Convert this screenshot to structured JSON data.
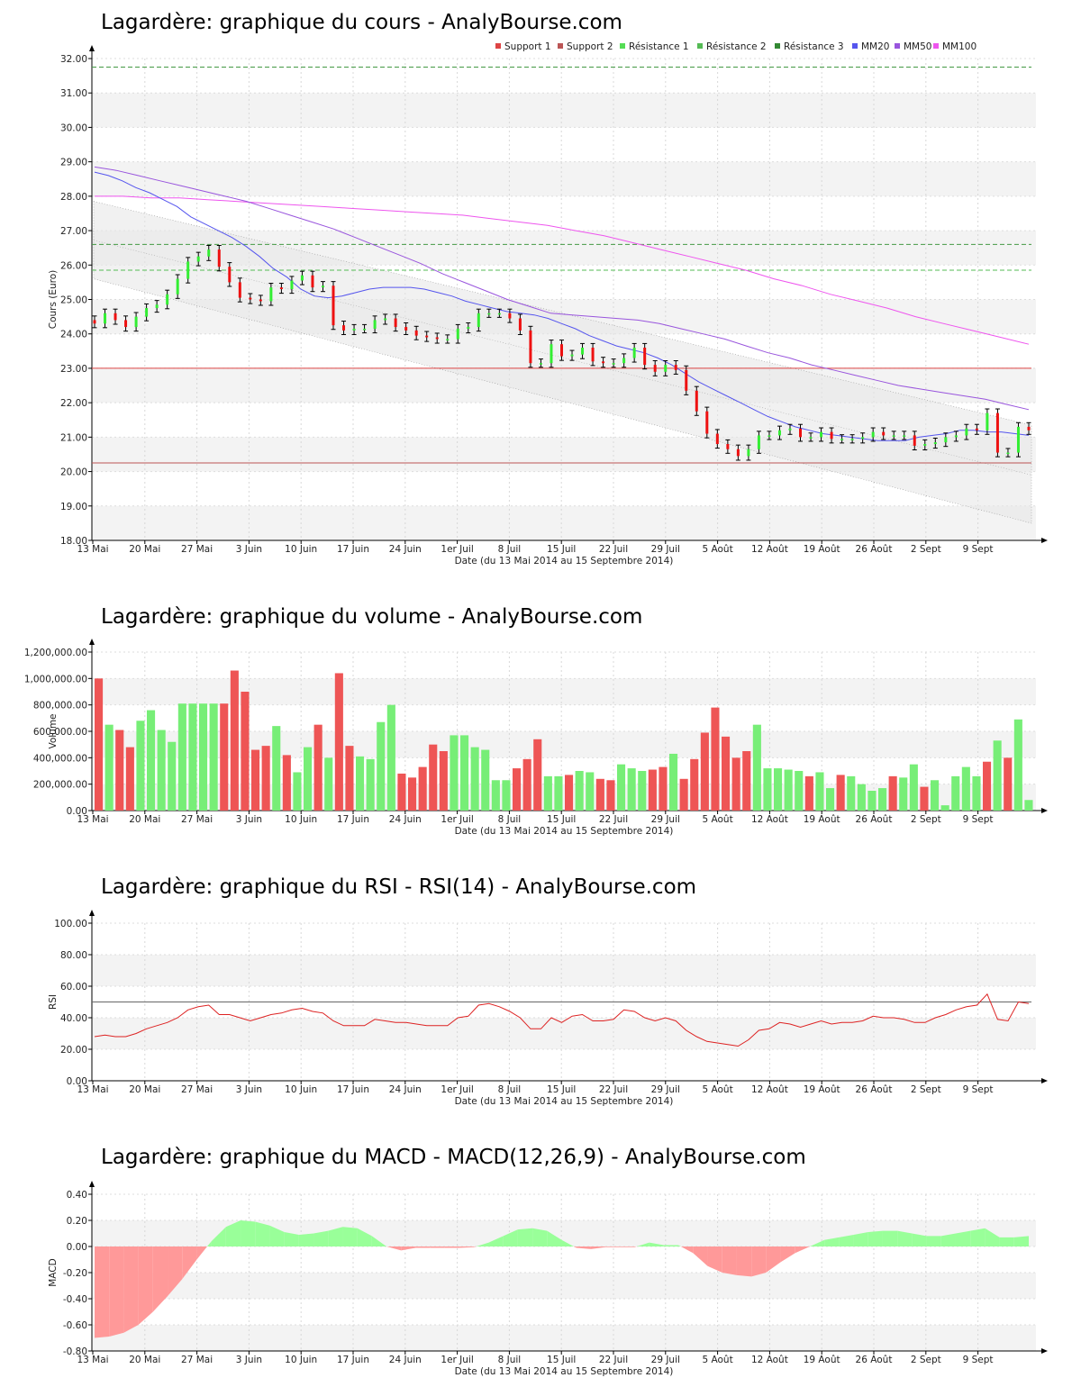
{
  "x_axis": {
    "ticks": [
      "13 Mai",
      "20 Mai",
      "27 Mai",
      "3 Juin",
      "10 Juin",
      "17 Juin",
      "24 Juin",
      "1er Juil",
      "8 Juil",
      "15 Juil",
      "22 Juil",
      "29 Juil",
      "5 Août",
      "12 Août",
      "19 Août",
      "26 Août",
      "2 Sept",
      "9 Sept"
    ],
    "label": "Date (du 13 Mai 2014 au 15 Septembre 2014)"
  },
  "colors": {
    "up": "#33ee33",
    "down": "#ee1111",
    "support": "#dd4444",
    "resistance": "#55bb55",
    "mm20": "#5555ee",
    "mm50": "#9955dd",
    "mm100": "#ee55ee",
    "vol_up": "#77ee77",
    "vol_down": "#ee5555",
    "rsi": "#dd2222",
    "macd_pos": "#99ff99",
    "macd_neg": "#ff9999"
  },
  "chart_data": [
    {
      "id": "price",
      "type": "candlestick",
      "title": "Lagardère: graphique du cours - AnalyBourse.com",
      "ylabel": "Cours (Euro)",
      "xlabel": "Date (du 13 Mai 2014 au 15 Septembre 2014)",
      "ylim": [
        18,
        32
      ],
      "yticks": [
        "18.00",
        "19.00",
        "20.00",
        "21.00",
        "22.00",
        "23.00",
        "24.00",
        "25.00",
        "26.00",
        "27.00",
        "28.00",
        "29.00",
        "30.00",
        "31.00",
        "32.00"
      ],
      "legend": [
        "Support 1",
        "Support 2",
        "Résistance 1",
        "Résistance 2",
        "Résistance 3",
        "MM20",
        "MM50",
        "MM100"
      ],
      "levels": {
        "support1": 23.0,
        "support2": 20.25,
        "resistance1": 25.85,
        "resistance2": 26.6,
        "resistance3": 31.75
      },
      "close": [
        24.3,
        24.6,
        24.4,
        24.2,
        24.5,
        24.75,
        24.85,
        25.15,
        25.6,
        26.1,
        26.25,
        26.45,
        25.95,
        25.5,
        25.05,
        25.0,
        24.95,
        25.35,
        25.3,
        25.55,
        25.7,
        25.35,
        25.4,
        24.25,
        24.1,
        24.15,
        24.15,
        24.4,
        24.45,
        24.2,
        24.1,
        23.95,
        23.9,
        23.85,
        23.85,
        24.15,
        24.2,
        24.6,
        24.6,
        24.6,
        24.45,
        24.1,
        23.15,
        23.15,
        23.7,
        23.35,
        23.4,
        23.6,
        23.2,
        23.15,
        23.15,
        23.3,
        23.6,
        23.1,
        22.9,
        23.1,
        22.95,
        22.35,
        21.75,
        21.1,
        20.8,
        20.65,
        20.45,
        20.65,
        21.05,
        21.05,
        21.2,
        21.25,
        21.0,
        21.0,
        21.15,
        20.95,
        20.95,
        20.95,
        21.0,
        21.15,
        21.05,
        21.05,
        21.05,
        20.75,
        20.8,
        20.85,
        21.0,
        21.05,
        21.25,
        21.2,
        21.7,
        20.55,
        20.55,
        21.3,
        21.2
      ],
      "mm20": [
        28.7,
        28.6,
        28.45,
        28.25,
        28.1,
        27.9,
        27.7,
        27.4,
        27.2,
        27.0,
        26.8,
        26.55,
        26.25,
        25.9,
        25.65,
        25.3,
        25.1,
        25.05,
        25.1,
        25.2,
        25.3,
        25.35,
        25.35,
        25.35,
        25.3,
        25.2,
        25.1,
        24.95,
        24.85,
        24.75,
        24.65,
        24.6,
        24.55,
        24.45,
        24.3,
        24.15,
        23.95,
        23.8,
        23.65,
        23.55,
        23.45,
        23.3,
        23.1,
        22.85,
        22.6,
        22.4,
        22.2,
        22.0,
        21.8,
        21.6,
        21.45,
        21.3,
        21.2,
        21.1,
        21.05,
        21.0,
        20.95,
        20.9,
        20.9,
        20.9,
        21.0,
        21.05,
        21.1,
        21.2,
        21.2,
        21.15,
        21.15,
        21.1,
        21.05
      ],
      "mm50": [
        28.85,
        28.75,
        28.6,
        28.45,
        28.3,
        28.15,
        28.0,
        27.85,
        27.65,
        27.45,
        27.25,
        27.05,
        26.8,
        26.55,
        26.3,
        26.05,
        25.75,
        25.5,
        25.25,
        25.0,
        24.8,
        24.6,
        24.55,
        24.5,
        24.45,
        24.4,
        24.3,
        24.15,
        24.0,
        23.85,
        23.65,
        23.45,
        23.3,
        23.1,
        22.95,
        22.8,
        22.65,
        22.5,
        22.4,
        22.3,
        22.2,
        22.1,
        21.95,
        21.8
      ],
      "mm100": [
        28.0,
        28.0,
        27.95,
        27.95,
        27.9,
        27.85,
        27.8,
        27.75,
        27.7,
        27.65,
        27.6,
        27.55,
        27.5,
        27.45,
        27.35,
        27.25,
        27.15,
        27.0,
        26.85,
        26.65,
        26.45,
        26.25,
        26.05,
        25.85,
        25.6,
        25.4,
        25.15,
        24.95,
        24.75,
        24.5,
        24.3,
        24.1,
        23.9,
        23.7
      ]
    },
    {
      "id": "volume",
      "type": "bar",
      "title": "Lagardère: graphique du volume - AnalyBourse.com",
      "ylabel": "Volume",
      "xlabel": "Date (du 13 Mai 2014 au 15 Septembre 2014)",
      "ylim": [
        0,
        1200000
      ],
      "yticks": [
        "0.00",
        "200,000.00",
        "400,000.00",
        "600,000.00",
        "800,000.00",
        "1,000,000.00",
        "1,200,000.00"
      ],
      "values": [
        1000000,
        650000,
        610000,
        480000,
        680000,
        760000,
        610000,
        520000,
        810000,
        810000,
        810000,
        810000,
        810000,
        1060000,
        900000,
        460000,
        490000,
        640000,
        420000,
        290000,
        480000,
        650000,
        400000,
        1040000,
        490000,
        410000,
        390000,
        670000,
        800000,
        280000,
        250000,
        330000,
        500000,
        450000,
        570000,
        570000,
        480000,
        460000,
        230000,
        230000,
        320000,
        390000,
        540000,
        260000,
        260000,
        270000,
        300000,
        290000,
        240000,
        230000,
        350000,
        320000,
        300000,
        310000,
        330000,
        430000,
        240000,
        390000,
        590000,
        780000,
        560000,
        400000,
        450000,
        650000,
        320000,
        320000,
        310000,
        300000,
        260000,
        290000,
        170000,
        270000,
        260000,
        200000,
        150000,
        170000,
        260000,
        250000,
        350000,
        180000,
        230000,
        40000,
        260000,
        330000,
        260000,
        370000,
        530000,
        400000,
        690000,
        80000
      ]
    },
    {
      "id": "rsi",
      "type": "line",
      "title": "Lagardère: graphique du RSI - RSI(14) - AnalyBourse.com",
      "ylabel": "RSI",
      "xlabel": "Date (du 13 Mai 2014 au 15 Septembre 2014)",
      "ylim": [
        0,
        100
      ],
      "yticks": [
        "0.00",
        "20.00",
        "40.00",
        "60.00",
        "80.00",
        "100.00"
      ],
      "reference": 50,
      "values": [
        28,
        29,
        28,
        28,
        30,
        33,
        35,
        37,
        40,
        45,
        47,
        48,
        42,
        42,
        40,
        38,
        40,
        42,
        43,
        45,
        46,
        44,
        43,
        38,
        35,
        35,
        35,
        39,
        38,
        37,
        37,
        36,
        35,
        35,
        35,
        40,
        41,
        48,
        49,
        47,
        44,
        40,
        33,
        33,
        40,
        37,
        41,
        42,
        38,
        38,
        39,
        45,
        44,
        40,
        38,
        40,
        38,
        32,
        28,
        25,
        24,
        23,
        22,
        26,
        32,
        33,
        37,
        36,
        34,
        36,
        38,
        36,
        37,
        37,
        38,
        41,
        40,
        40,
        39,
        37,
        37,
        40,
        42,
        45,
        47,
        48,
        55,
        39,
        38,
        50,
        49
      ]
    },
    {
      "id": "macd",
      "type": "area",
      "title": "Lagardère: graphique du MACD - MACD(12,26,9) - AnalyBourse.com",
      "ylabel": "MACD",
      "xlabel": "Date (du 13 Mai 2014 au 15 Septembre 2014)",
      "ylim": [
        -0.8,
        0.4
      ],
      "yticks": [
        "-0.80",
        "-0.60",
        "-0.40",
        "-0.20",
        "0.00",
        "0.20",
        "0.40"
      ],
      "values": [
        -0.7,
        -0.69,
        -0.66,
        -0.6,
        -0.5,
        -0.38,
        -0.25,
        -0.1,
        0.04,
        0.15,
        0.2,
        0.19,
        0.16,
        0.11,
        0.09,
        0.1,
        0.12,
        0.15,
        0.14,
        0.08,
        0.0,
        -0.03,
        -0.01,
        -0.01,
        -0.01,
        -0.01,
        -0.005,
        0.03,
        0.08,
        0.13,
        0.14,
        0.12,
        0.05,
        -0.01,
        -0.02,
        -0.005,
        -0.005,
        -0.005,
        0.03,
        0.01,
        0.01,
        -0.05,
        -0.15,
        -0.2,
        -0.22,
        -0.23,
        -0.2,
        -0.12,
        -0.05,
        0.0,
        0.05,
        0.07,
        0.09,
        0.11,
        0.12,
        0.12,
        0.1,
        0.08,
        0.08,
        0.1,
        0.12,
        0.14,
        0.07,
        0.07,
        0.08
      ]
    }
  ]
}
